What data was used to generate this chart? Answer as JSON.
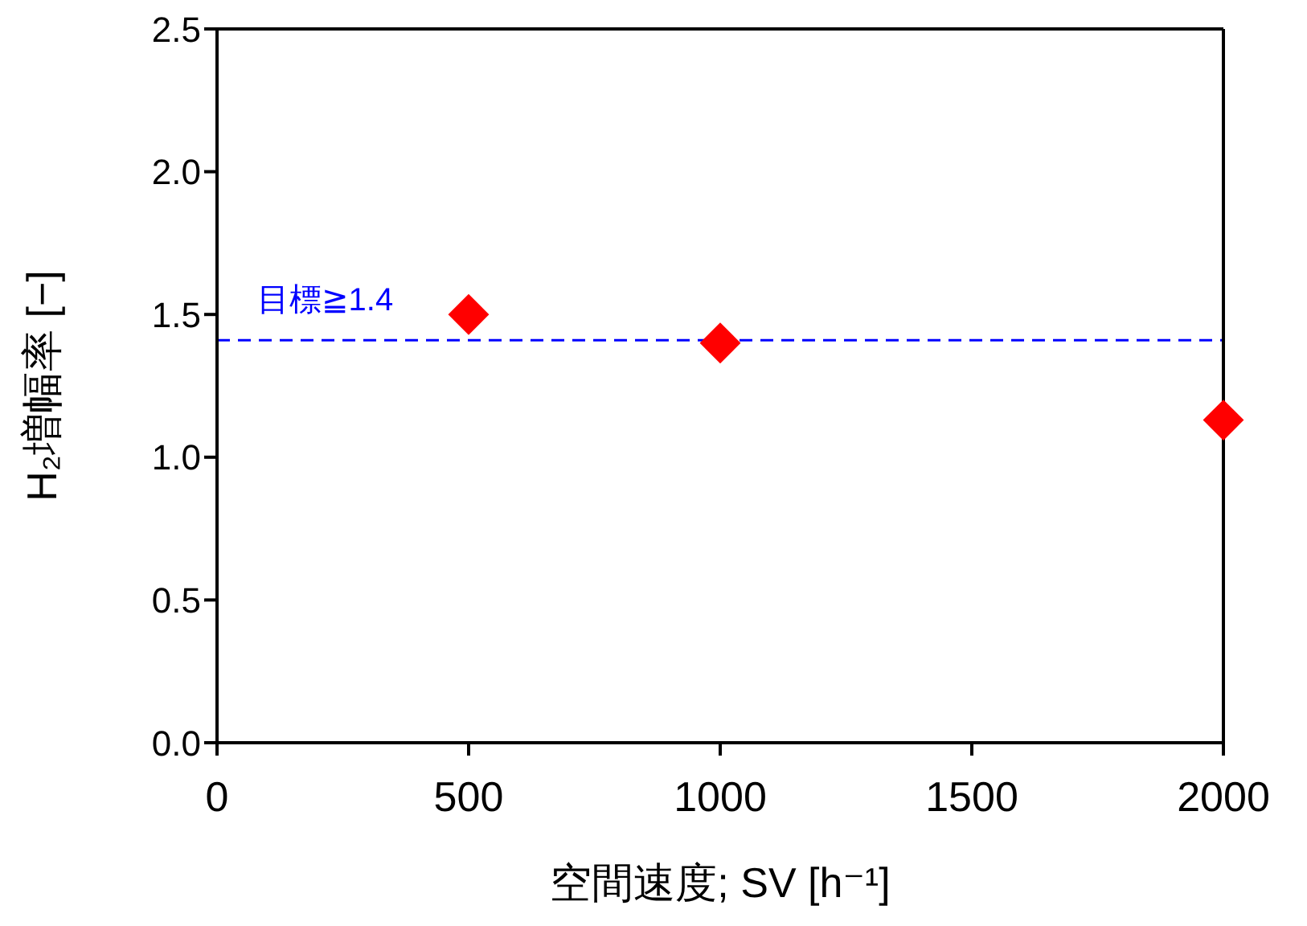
{
  "chart_data": {
    "type": "scatter",
    "xlabel": "空間速度; SV [h⁻¹]",
    "ylabel": "H₂増幅率 [−]",
    "x": [
      500,
      1000,
      2000
    ],
    "series": [
      {
        "color": "#ff0000",
        "values": [
          1.5,
          1.4,
          1.13
        ]
      }
    ],
    "xlim": [
      0,
      2000
    ],
    "xticks": [
      0,
      500,
      1000,
      1500,
      2000
    ],
    "ylim": [
      0,
      2.5
    ],
    "yticks": [
      {
        "value": 0,
        "label": "0.0"
      },
      0.5,
      {
        "value": 1,
        "label": "1.0"
      },
      1.5,
      {
        "value": 2,
        "label": "2.0"
      },
      2.5
    ],
    "ref_lines": [
      {
        "axis": "y",
        "value": 1.41,
        "label": "目標≧1.4",
        "color": "#0000ff",
        "line_style": "dashed"
      }
    ],
    "marker": "diamond"
  }
}
